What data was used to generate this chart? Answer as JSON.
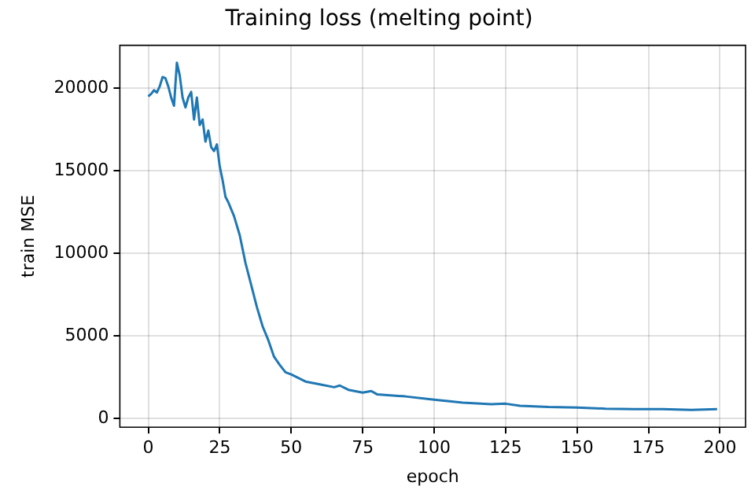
{
  "chart_data": {
    "type": "line",
    "title": "Training loss (melting point)",
    "xlabel": "epoch",
    "ylabel": "train MSE",
    "x": [
      0,
      1,
      2,
      3,
      4,
      5,
      6,
      7,
      8,
      9,
      10,
      11,
      12,
      13,
      14,
      15,
      16,
      17,
      18,
      19,
      20,
      21,
      22,
      23,
      24,
      25,
      26,
      27,
      28,
      30,
      32,
      34,
      36,
      38,
      40,
      42,
      44,
      46,
      48,
      50,
      55,
      60,
      65,
      67,
      70,
      75,
      78,
      80,
      90,
      100,
      110,
      120,
      125,
      130,
      140,
      150,
      160,
      170,
      180,
      190,
      199
    ],
    "series": [
      {
        "color": "#1f77b4",
        "values": [
          19500,
          19650,
          19870,
          19730,
          20100,
          20670,
          20600,
          20100,
          19430,
          18930,
          21540,
          20770,
          19430,
          18830,
          19430,
          19770,
          18100,
          19430,
          17760,
          18100,
          16760,
          17430,
          16430,
          16190,
          16590,
          15260,
          14420,
          13420,
          13090,
          12250,
          11090,
          9420,
          8080,
          6740,
          5580,
          4740,
          3740,
          3240,
          2800,
          2670,
          2240,
          2070,
          1900,
          2000,
          1740,
          1570,
          1670,
          1470,
          1340,
          1140,
          970,
          870,
          900,
          770,
          700,
          670,
          600,
          570,
          570,
          530,
          570
        ]
      }
    ],
    "xlim": [
      -9.95,
      208.95
    ],
    "ylim": [
      -520,
      22590
    ],
    "xticks": [
      0,
      25,
      50,
      75,
      100,
      125,
      150,
      175,
      200
    ],
    "yticks": [
      0,
      5000,
      10000,
      15000,
      20000
    ],
    "grid": true,
    "legend": false,
    "marker": "none",
    "line_style": "solid"
  }
}
